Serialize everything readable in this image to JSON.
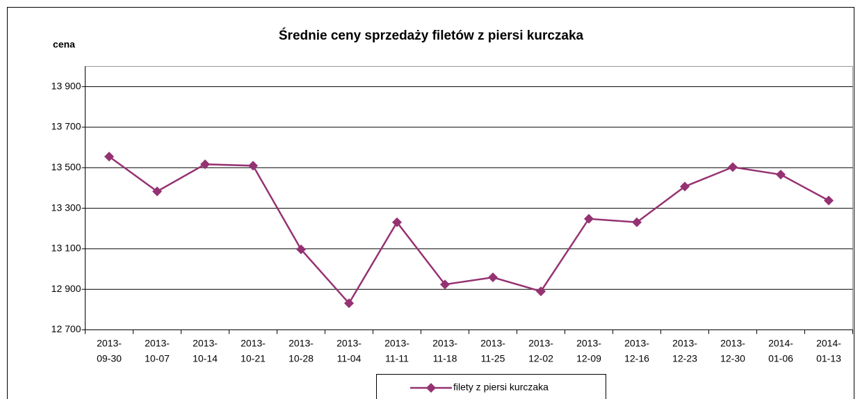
{
  "chart_data": {
    "type": "line",
    "title": "Średnie ceny sprzedaży filetów z piersi kurczaka",
    "y_label": "cena",
    "categories": [
      "2013-09-30",
      "2013-10-07",
      "2013-10-14",
      "2013-10-21",
      "2013-10-28",
      "2013-11-04",
      "2013-11-11",
      "2013-11-18",
      "2013-11-25",
      "2013-12-02",
      "2013-12-09",
      "2013-12-16",
      "2013-12-23",
      "2013-12-30",
      "2014-01-06",
      "2014-01-13"
    ],
    "series": [
      {
        "name": "filety z piersi kurczaka",
        "color": "#953272",
        "values": [
          13555,
          13383,
          13517,
          13510,
          13097,
          12831,
          13231,
          12924,
          12959,
          12890,
          13248,
          13231,
          13407,
          13503,
          13466,
          13338
        ]
      }
    ],
    "ylim": [
      12700,
      14000
    ],
    "yticks": [
      {
        "value": 12700,
        "label": "12 700"
      },
      {
        "value": 12900,
        "label": "12 900"
      },
      {
        "value": 13100,
        "label": "13 100"
      },
      {
        "value": 13300,
        "label": "13 300"
      },
      {
        "value": 13500,
        "label": "13 500"
      },
      {
        "value": 13700,
        "label": "13 700"
      },
      {
        "value": 13900,
        "label": "13 900"
      }
    ],
    "grid": true
  }
}
